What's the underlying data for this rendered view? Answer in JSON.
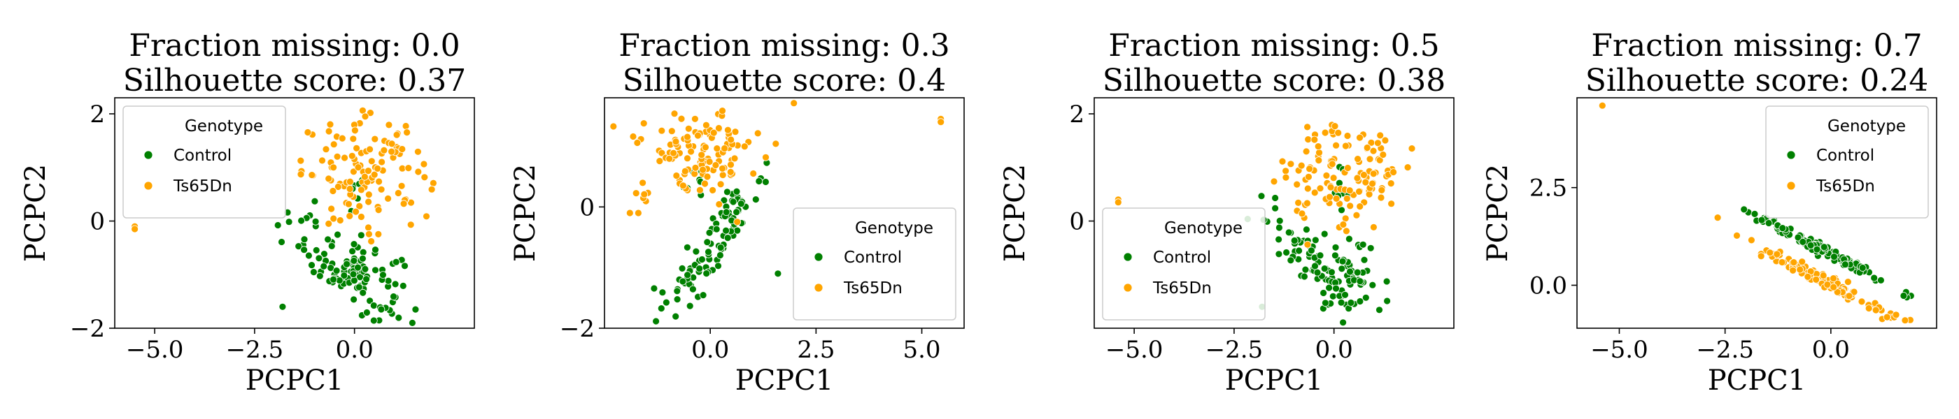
{
  "chart_data": [
    {
      "type": "scatter",
      "title": [
        "Fraction missing: 0.0",
        "Silhouette score: 0.37"
      ],
      "xlabel": "PCPC1",
      "ylabel": "PCPC2",
      "xlim": [
        -6,
        3
      ],
      "ylim": [
        -2,
        2.3
      ],
      "xticks": [
        -5.0,
        -2.5,
        0.0
      ],
      "xtick_labels": [
        "−5.0",
        "−2.5",
        "0.0"
      ],
      "yticks": [
        -2,
        0,
        2
      ],
      "ytick_labels": [
        "−2",
        "0",
        "2"
      ],
      "legend": {
        "title": "Genotype",
        "placement": "upper-left"
      },
      "series": [
        {
          "name": "Control",
          "color": "#008000",
          "clusters": [
            {
              "cx": 0.1,
              "cy": -1.0,
              "sx": 0.55,
              "sy": 0.35,
              "n": 100,
              "slope": -0.25
            },
            {
              "cx": -1.2,
              "cy": -0.2,
              "sx": 0.45,
              "sy": 0.3,
              "n": 20,
              "slope": -0.4
            },
            {
              "cx": 0.1,
              "cy": 0.5,
              "sx": 0.15,
              "sy": 0.25,
              "n": 8,
              "slope": 0
            }
          ],
          "points": [
            [
              -1.8,
              -1.6
            ]
          ]
        },
        {
          "name": "Ts65Dn",
          "color": "#FFA500",
          "clusters": [
            {
              "cx": 0.3,
              "cy": 0.9,
              "sx": 0.8,
              "sy": 0.5,
              "n": 120,
              "slope": 0
            }
          ],
          "points": [
            [
              -5.5,
              -0.1
            ],
            [
              -5.5,
              -0.15
            ]
          ]
        }
      ]
    },
    {
      "type": "scatter",
      "title": [
        "Fraction missing: 0.3",
        "Silhouette score: 0.4"
      ],
      "xlabel": "PCPC1",
      "ylabel": "PCPC2",
      "xlim": [
        -2.5,
        6
      ],
      "ylim": [
        -2,
        1.8
      ],
      "xticks": [
        0.0,
        2.5,
        5.0
      ],
      "xtick_labels": [
        "0.0",
        "2.5",
        "5.0"
      ],
      "yticks": [
        -2,
        0
      ],
      "ytick_labels": [
        "−2",
        "0"
      ],
      "legend": {
        "title": "Genotype",
        "placement": "lower-right"
      },
      "series": [
        {
          "name": "Control",
          "color": "#008000",
          "clusters": [
            {
              "cx": 0.0,
              "cy": -0.7,
              "sx": 0.7,
              "sy": 0.25,
              "n": 100,
              "slope": 0.9
            },
            {
              "cx": -0.3,
              "cy": 0.6,
              "sx": 0.15,
              "sy": 0.2,
              "n": 8,
              "slope": 0
            }
          ],
          "points": [
            [
              1.6,
              -1.1
            ]
          ]
        },
        {
          "name": "Ts65Dn",
          "color": "#FFA500",
          "clusters": [
            {
              "cx": -0.3,
              "cy": 0.9,
              "sx": 0.75,
              "sy": 0.35,
              "n": 120,
              "slope": 0.1
            }
          ],
          "points": [
            [
              -1.9,
              -0.1
            ],
            [
              -1.7,
              -0.1
            ],
            [
              5.45,
              1.45
            ],
            [
              5.45,
              1.4
            ]
          ]
        }
      ]
    },
    {
      "type": "scatter",
      "title": [
        "Fraction missing: 0.5",
        "Silhouette score: 0.38"
      ],
      "xlabel": "PCPC1",
      "ylabel": "PCPC2",
      "xlim": [
        -6,
        3
      ],
      "ylim": [
        -2,
        2.3
      ],
      "xticks": [
        -5.0,
        -2.5,
        0.0
      ],
      "xtick_labels": [
        "−5.0",
        "−2.5",
        "0.0"
      ],
      "yticks": [
        0,
        2
      ],
      "ytick_labels": [
        "0",
        "2"
      ],
      "legend": {
        "title": "Genotype",
        "placement": "lower-left"
      },
      "series": [
        {
          "name": "Control",
          "color": "#008000",
          "clusters": [
            {
              "cx": 0.1,
              "cy": -1.0,
              "sx": 0.55,
              "sy": 0.35,
              "n": 100,
              "slope": -0.25
            },
            {
              "cx": -1.2,
              "cy": -0.2,
              "sx": 0.45,
              "sy": 0.3,
              "n": 20,
              "slope": -0.4
            },
            {
              "cx": 0.1,
              "cy": 0.5,
              "sx": 0.15,
              "sy": 0.25,
              "n": 8,
              "slope": 0
            }
          ],
          "points": [
            [
              -1.8,
              -1.6
            ]
          ]
        },
        {
          "name": "Ts65Dn",
          "color": "#FFA500",
          "clusters": [
            {
              "cx": 0.3,
              "cy": 0.9,
              "sx": 0.8,
              "sy": 0.5,
              "n": 120,
              "slope": 0
            }
          ],
          "points": [
            [
              -5.4,
              0.4
            ],
            [
              -5.4,
              0.35
            ]
          ]
        }
      ]
    },
    {
      "type": "scatter",
      "title": [
        "Fraction missing: 0.7",
        "Silhouette score: 0.24"
      ],
      "xlabel": "PCPC1",
      "ylabel": "PCPC2",
      "xlim": [
        -6,
        2.5
      ],
      "ylim": [
        -1.1,
        4.8
      ],
      "xticks": [
        -5.0,
        -2.5,
        0.0
      ],
      "xtick_labels": [
        "−5.0",
        "−2.5",
        "0.0"
      ],
      "yticks": [
        0.0,
        2.5
      ],
      "ytick_labels": [
        "0.0",
        "2.5"
      ],
      "legend": {
        "title": "Genotype",
        "placement": "upper-right"
      },
      "series": [
        {
          "name": "Control",
          "color": "#008000",
          "clusters": [
            {
              "cx": -0.2,
              "cy": 0.9,
              "sx": 0.85,
              "sy": 0.08,
              "n": 120,
              "slope": -0.55
            }
          ],
          "points": []
        },
        {
          "name": "Ts65Dn",
          "color": "#FFA500",
          "clusters": [
            {
              "cx": -0.1,
              "cy": 0.1,
              "sx": 0.9,
              "sy": 0.1,
              "n": 120,
              "slope": -0.55
            }
          ],
          "points": [
            [
              -5.4,
              4.6
            ]
          ]
        }
      ]
    }
  ]
}
